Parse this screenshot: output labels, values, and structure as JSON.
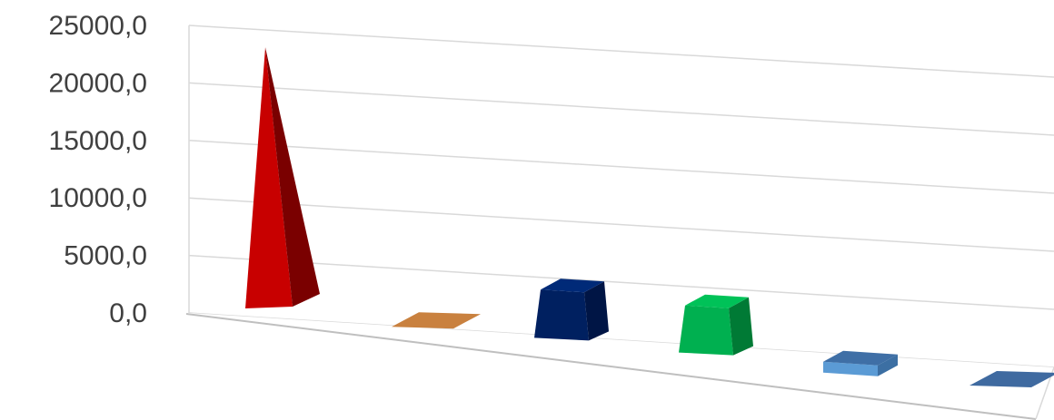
{
  "chart_data": {
    "type": "bar",
    "categories": [
      "",
      "",
      "",
      "",
      "",
      ""
    ],
    "values": [
      23900,
      0,
      4200,
      4100,
      950,
      0
    ],
    "shapes": [
      "pyramid",
      "flat",
      "frustum",
      "frustum",
      "box",
      "flat"
    ],
    "colors": [
      {
        "front": "#c80000",
        "side": "#7a0000",
        "top": "#e00000"
      },
      {
        "front": "#c0763a",
        "side": "#9a5a28",
        "top": "#c9813f"
      },
      {
        "front": "#002060",
        "side": "#001545",
        "top": "#002a78"
      },
      {
        "front": "#00b050",
        "side": "#007a35",
        "top": "#00c258"
      },
      {
        "front": "#5b9bd5",
        "side": "#3c6fa3",
        "top": "#3f6fa6"
      },
      {
        "front": "#3d6699",
        "side": "#2c4f7a",
        "top": "#3f6aa0"
      }
    ],
    "ylim": [
      0,
      25000
    ],
    "y_ticks": [
      "0,0",
      "5000,0",
      "10000,0",
      "15000,0",
      "20000,0",
      "25000,0"
    ],
    "grid": true,
    "title": "",
    "xlabel": "",
    "ylabel": ""
  }
}
